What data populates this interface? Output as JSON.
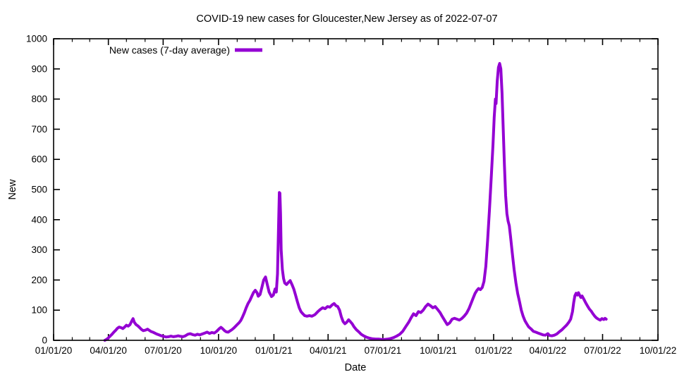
{
  "page": {
    "background": "#ffffff"
  },
  "chart_data": {
    "type": "line",
    "title": "COVID-19 new cases for Gloucester,New Jersey as of 2022-07-07",
    "xlabel": "Date",
    "ylabel": "New",
    "legend": {
      "label": "New cases (7-day average)",
      "position": "top-left-inside"
    },
    "line_color": "#9400d3",
    "axis_color": "#000000",
    "grid": false,
    "ylim": [
      0,
      1000
    ],
    "x_range": [
      "2020-01-01",
      "2022-10-01"
    ],
    "y_ticks": [
      {
        "value": 0,
        "label": "0"
      },
      {
        "value": 100,
        "label": "100"
      },
      {
        "value": 200,
        "label": "200"
      },
      {
        "value": 300,
        "label": "300"
      },
      {
        "value": 400,
        "label": "400"
      },
      {
        "value": 500,
        "label": "500"
      },
      {
        "value": 600,
        "label": "600"
      },
      {
        "value": 700,
        "label": "700"
      },
      {
        "value": 800,
        "label": "800"
      },
      {
        "value": 900,
        "label": "900"
      },
      {
        "value": 1000,
        "label": "1000"
      }
    ],
    "x_ticks": [
      {
        "date": "2020-01-01",
        "label": "01/01/20"
      },
      {
        "date": "2020-04-01",
        "label": "04/01/20"
      },
      {
        "date": "2020-07-01",
        "label": "07/01/20"
      },
      {
        "date": "2020-10-01",
        "label": "10/01/20"
      },
      {
        "date": "2021-01-01",
        "label": "01/01/21"
      },
      {
        "date": "2021-04-01",
        "label": "04/01/21"
      },
      {
        "date": "2021-07-01",
        "label": "07/01/21"
      },
      {
        "date": "2021-10-01",
        "label": "10/01/21"
      },
      {
        "date": "2022-01-01",
        "label": "01/01/22"
      },
      {
        "date": "2022-04-01",
        "label": "04/01/22"
      },
      {
        "date": "2022-07-01",
        "label": "07/01/22"
      },
      {
        "date": "2022-10-01",
        "label": "10/01/22"
      }
    ],
    "series": [
      {
        "name": "New cases (7-day average)",
        "points": [
          [
            "2020-03-26",
            0
          ],
          [
            "2020-03-29",
            3
          ],
          [
            "2020-04-01",
            8
          ],
          [
            "2020-04-04",
            14
          ],
          [
            "2020-04-07",
            20
          ],
          [
            "2020-04-10",
            27
          ],
          [
            "2020-04-13",
            33
          ],
          [
            "2020-04-16",
            40
          ],
          [
            "2020-04-19",
            44
          ],
          [
            "2020-04-22",
            42
          ],
          [
            "2020-04-25",
            39
          ],
          [
            "2020-04-28",
            44
          ],
          [
            "2020-05-01",
            50
          ],
          [
            "2020-05-04",
            47
          ],
          [
            "2020-05-07",
            52
          ],
          [
            "2020-05-10",
            65
          ],
          [
            "2020-05-12",
            72
          ],
          [
            "2020-05-14",
            60
          ],
          [
            "2020-05-17",
            52
          ],
          [
            "2020-05-20",
            48
          ],
          [
            "2020-05-23",
            42
          ],
          [
            "2020-05-26",
            36
          ],
          [
            "2020-05-29",
            32
          ],
          [
            "2020-06-02",
            34
          ],
          [
            "2020-06-05",
            37
          ],
          [
            "2020-06-08",
            33
          ],
          [
            "2020-06-11",
            29
          ],
          [
            "2020-06-14",
            27
          ],
          [
            "2020-06-17",
            24
          ],
          [
            "2020-06-20",
            21
          ],
          [
            "2020-06-24",
            18
          ],
          [
            "2020-06-28",
            15
          ],
          [
            "2020-07-02",
            13
          ],
          [
            "2020-07-06",
            11
          ],
          [
            "2020-07-10",
            12
          ],
          [
            "2020-07-14",
            14
          ],
          [
            "2020-07-18",
            12
          ],
          [
            "2020-07-22",
            13
          ],
          [
            "2020-07-26",
            15
          ],
          [
            "2020-07-30",
            13
          ],
          [
            "2020-08-03",
            12
          ],
          [
            "2020-08-07",
            15
          ],
          [
            "2020-08-11",
            20
          ],
          [
            "2020-08-15",
            22
          ],
          [
            "2020-08-19",
            19
          ],
          [
            "2020-08-23",
            17
          ],
          [
            "2020-08-27",
            20
          ],
          [
            "2020-08-31",
            18
          ],
          [
            "2020-09-04",
            21
          ],
          [
            "2020-09-08",
            24
          ],
          [
            "2020-09-12",
            27
          ],
          [
            "2020-09-16",
            23
          ],
          [
            "2020-09-20",
            26
          ],
          [
            "2020-09-24",
            24
          ],
          [
            "2020-09-28",
            30
          ],
          [
            "2020-10-02",
            38
          ],
          [
            "2020-10-05",
            43
          ],
          [
            "2020-10-08",
            38
          ],
          [
            "2020-10-11",
            32
          ],
          [
            "2020-10-14",
            28
          ],
          [
            "2020-10-17",
            27
          ],
          [
            "2020-10-20",
            31
          ],
          [
            "2020-10-23",
            35
          ],
          [
            "2020-10-26",
            40
          ],
          [
            "2020-10-29",
            46
          ],
          [
            "2020-11-01",
            52
          ],
          [
            "2020-11-04",
            58
          ],
          [
            "2020-11-07",
            66
          ],
          [
            "2020-11-10",
            78
          ],
          [
            "2020-11-13",
            92
          ],
          [
            "2020-11-16",
            108
          ],
          [
            "2020-11-19",
            122
          ],
          [
            "2020-11-22",
            132
          ],
          [
            "2020-11-25",
            145
          ],
          [
            "2020-11-28",
            158
          ],
          [
            "2020-12-01",
            166
          ],
          [
            "2020-12-04",
            158
          ],
          [
            "2020-12-06",
            146
          ],
          [
            "2020-12-09",
            152
          ],
          [
            "2020-12-12",
            175
          ],
          [
            "2020-12-15",
            200
          ],
          [
            "2020-12-18",
            210
          ],
          [
            "2020-12-21",
            185
          ],
          [
            "2020-12-24",
            160
          ],
          [
            "2020-12-28",
            145
          ],
          [
            "2020-12-31",
            150
          ],
          [
            "2021-01-03",
            170
          ],
          [
            "2021-01-05",
            160
          ],
          [
            "2021-01-07",
            220
          ],
          [
            "2021-01-09",
            400
          ],
          [
            "2021-01-10",
            490
          ],
          [
            "2021-01-11",
            488
          ],
          [
            "2021-01-12",
            420
          ],
          [
            "2021-01-13",
            300
          ],
          [
            "2021-01-15",
            235
          ],
          [
            "2021-01-17",
            205
          ],
          [
            "2021-01-19",
            190
          ],
          [
            "2021-01-22",
            185
          ],
          [
            "2021-01-25",
            192
          ],
          [
            "2021-01-28",
            198
          ],
          [
            "2021-01-31",
            185
          ],
          [
            "2021-02-03",
            170
          ],
          [
            "2021-02-06",
            150
          ],
          [
            "2021-02-09",
            128
          ],
          [
            "2021-02-12",
            108
          ],
          [
            "2021-02-15",
            95
          ],
          [
            "2021-02-18",
            88
          ],
          [
            "2021-02-21",
            82
          ],
          [
            "2021-02-25",
            80
          ],
          [
            "2021-03-01",
            82
          ],
          [
            "2021-03-05",
            80
          ],
          [
            "2021-03-10",
            85
          ],
          [
            "2021-03-15",
            95
          ],
          [
            "2021-03-19",
            102
          ],
          [
            "2021-03-23",
            108
          ],
          [
            "2021-03-27",
            105
          ],
          [
            "2021-03-31",
            112
          ],
          [
            "2021-04-04",
            110
          ],
          [
            "2021-04-08",
            118
          ],
          [
            "2021-04-11",
            122
          ],
          [
            "2021-04-14",
            115
          ],
          [
            "2021-04-17",
            112
          ],
          [
            "2021-04-20",
            100
          ],
          [
            "2021-04-23",
            78
          ],
          [
            "2021-04-26",
            62
          ],
          [
            "2021-04-29",
            55
          ],
          [
            "2021-05-02",
            60
          ],
          [
            "2021-05-05",
            68
          ],
          [
            "2021-05-08",
            62
          ],
          [
            "2021-05-11",
            55
          ],
          [
            "2021-05-14",
            45
          ],
          [
            "2021-05-18",
            35
          ],
          [
            "2021-05-22",
            28
          ],
          [
            "2021-05-26",
            20
          ],
          [
            "2021-05-30",
            15
          ],
          [
            "2021-06-04",
            10
          ],
          [
            "2021-06-09",
            7
          ],
          [
            "2021-06-14",
            5
          ],
          [
            "2021-06-19",
            4
          ],
          [
            "2021-06-24",
            4
          ],
          [
            "2021-06-29",
            3
          ],
          [
            "2021-07-04",
            3
          ],
          [
            "2021-07-09",
            4
          ],
          [
            "2021-07-14",
            6
          ],
          [
            "2021-07-19",
            9
          ],
          [
            "2021-07-24",
            14
          ],
          [
            "2021-07-29",
            20
          ],
          [
            "2021-08-03",
            30
          ],
          [
            "2021-08-08",
            45
          ],
          [
            "2021-08-13",
            60
          ],
          [
            "2021-08-17",
            75
          ],
          [
            "2021-08-21",
            88
          ],
          [
            "2021-08-25",
            82
          ],
          [
            "2021-08-29",
            95
          ],
          [
            "2021-09-02",
            92
          ],
          [
            "2021-09-06",
            100
          ],
          [
            "2021-09-10",
            112
          ],
          [
            "2021-09-14",
            120
          ],
          [
            "2021-09-18",
            115
          ],
          [
            "2021-09-22",
            108
          ],
          [
            "2021-09-26",
            112
          ],
          [
            "2021-09-30",
            102
          ],
          [
            "2021-10-04",
            92
          ],
          [
            "2021-10-08",
            78
          ],
          [
            "2021-10-12",
            65
          ],
          [
            "2021-10-16",
            52
          ],
          [
            "2021-10-20",
            58
          ],
          [
            "2021-10-24",
            70
          ],
          [
            "2021-10-28",
            73
          ],
          [
            "2021-11-01",
            70
          ],
          [
            "2021-11-05",
            67
          ],
          [
            "2021-11-09",
            72
          ],
          [
            "2021-11-13",
            80
          ],
          [
            "2021-11-17",
            90
          ],
          [
            "2021-11-21",
            105
          ],
          [
            "2021-11-25",
            125
          ],
          [
            "2021-11-28",
            140
          ],
          [
            "2021-12-01",
            155
          ],
          [
            "2021-12-04",
            165
          ],
          [
            "2021-12-07",
            172
          ],
          [
            "2021-12-10",
            168
          ],
          [
            "2021-12-13",
            175
          ],
          [
            "2021-12-16",
            195
          ],
          [
            "2021-12-19",
            245
          ],
          [
            "2021-12-22",
            330
          ],
          [
            "2021-12-25",
            430
          ],
          [
            "2021-12-28",
            540
          ],
          [
            "2021-12-31",
            650
          ],
          [
            "2022-01-02",
            740
          ],
          [
            "2022-01-04",
            800
          ],
          [
            "2022-01-05",
            785
          ],
          [
            "2022-01-07",
            860
          ],
          [
            "2022-01-09",
            905
          ],
          [
            "2022-01-11",
            918
          ],
          [
            "2022-01-13",
            900
          ],
          [
            "2022-01-15",
            820
          ],
          [
            "2022-01-17",
            700
          ],
          [
            "2022-01-19",
            580
          ],
          [
            "2022-01-21",
            480
          ],
          [
            "2022-01-23",
            420
          ],
          [
            "2022-01-25",
            395
          ],
          [
            "2022-01-27",
            380
          ],
          [
            "2022-01-29",
            345
          ],
          [
            "2022-02-01",
            290
          ],
          [
            "2022-02-04",
            235
          ],
          [
            "2022-02-07",
            190
          ],
          [
            "2022-02-10",
            155
          ],
          [
            "2022-02-13",
            128
          ],
          [
            "2022-02-16",
            100
          ],
          [
            "2022-02-19",
            80
          ],
          [
            "2022-02-22",
            65
          ],
          [
            "2022-02-25",
            55
          ],
          [
            "2022-02-28",
            45
          ],
          [
            "2022-03-04",
            38
          ],
          [
            "2022-03-08",
            30
          ],
          [
            "2022-03-12",
            27
          ],
          [
            "2022-03-16",
            24
          ],
          [
            "2022-03-20",
            21
          ],
          [
            "2022-03-24",
            18
          ],
          [
            "2022-03-28",
            17
          ],
          [
            "2022-04-01",
            22
          ],
          [
            "2022-04-04",
            16
          ],
          [
            "2022-04-08",
            15
          ],
          [
            "2022-04-12",
            17
          ],
          [
            "2022-04-16",
            21
          ],
          [
            "2022-04-20",
            28
          ],
          [
            "2022-04-24",
            34
          ],
          [
            "2022-04-28",
            42
          ],
          [
            "2022-05-02",
            50
          ],
          [
            "2022-05-06",
            60
          ],
          [
            "2022-05-09",
            70
          ],
          [
            "2022-05-12",
            95
          ],
          [
            "2022-05-14",
            125
          ],
          [
            "2022-05-16",
            148
          ],
          [
            "2022-05-18",
            156
          ],
          [
            "2022-05-20",
            150
          ],
          [
            "2022-05-22",
            158
          ],
          [
            "2022-05-24",
            149
          ],
          [
            "2022-05-26",
            142
          ],
          [
            "2022-05-28",
            147
          ],
          [
            "2022-05-31",
            136
          ],
          [
            "2022-06-03",
            124
          ],
          [
            "2022-06-06",
            114
          ],
          [
            "2022-06-09",
            104
          ],
          [
            "2022-06-12",
            97
          ],
          [
            "2022-06-15",
            88
          ],
          [
            "2022-06-18",
            80
          ],
          [
            "2022-06-21",
            74
          ],
          [
            "2022-06-24",
            70
          ],
          [
            "2022-06-27",
            67
          ],
          [
            "2022-06-30",
            72
          ],
          [
            "2022-07-03",
            69
          ],
          [
            "2022-07-05",
            73
          ],
          [
            "2022-07-07",
            70
          ]
        ]
      }
    ]
  }
}
